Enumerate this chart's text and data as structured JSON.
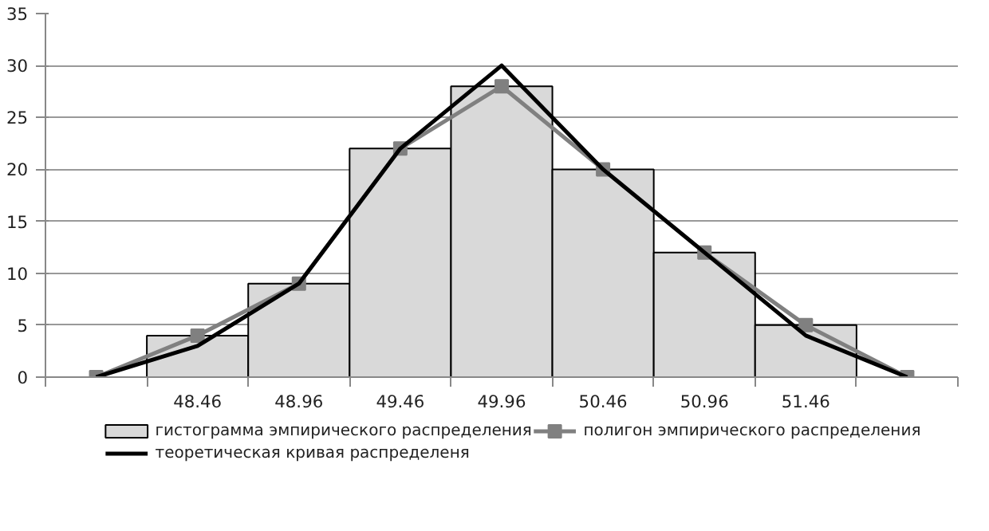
{
  "chart_data": {
    "type": "bar",
    "categories": [
      null,
      "48.46",
      "48.96",
      "49.46",
      "49.96",
      "50.46",
      "50.96",
      "51.46",
      null
    ],
    "series": [
      {
        "name": "гистограмма эмпирического распределения",
        "color": "#d9d9d9",
        "values": [
          null,
          4,
          9,
          22,
          28,
          20,
          12,
          5,
          null
        ]
      },
      {
        "name": "полигон эмпирического распределения",
        "type": "line",
        "color": "#808080",
        "marker": "square",
        "values": [
          0,
          4,
          9,
          22,
          28,
          20,
          12,
          5,
          0
        ]
      },
      {
        "name": "теоретическая кривая  распределеня",
        "type": "line",
        "color": "#000000",
        "values": [
          0,
          3,
          9,
          22,
          30,
          20,
          12,
          4,
          0
        ]
      }
    ],
    "ylim": [
      0,
      35
    ],
    "yticks": [
      0,
      5,
      10,
      15,
      20,
      25,
      30,
      35
    ],
    "grid": "y",
    "legend": "bottom"
  }
}
